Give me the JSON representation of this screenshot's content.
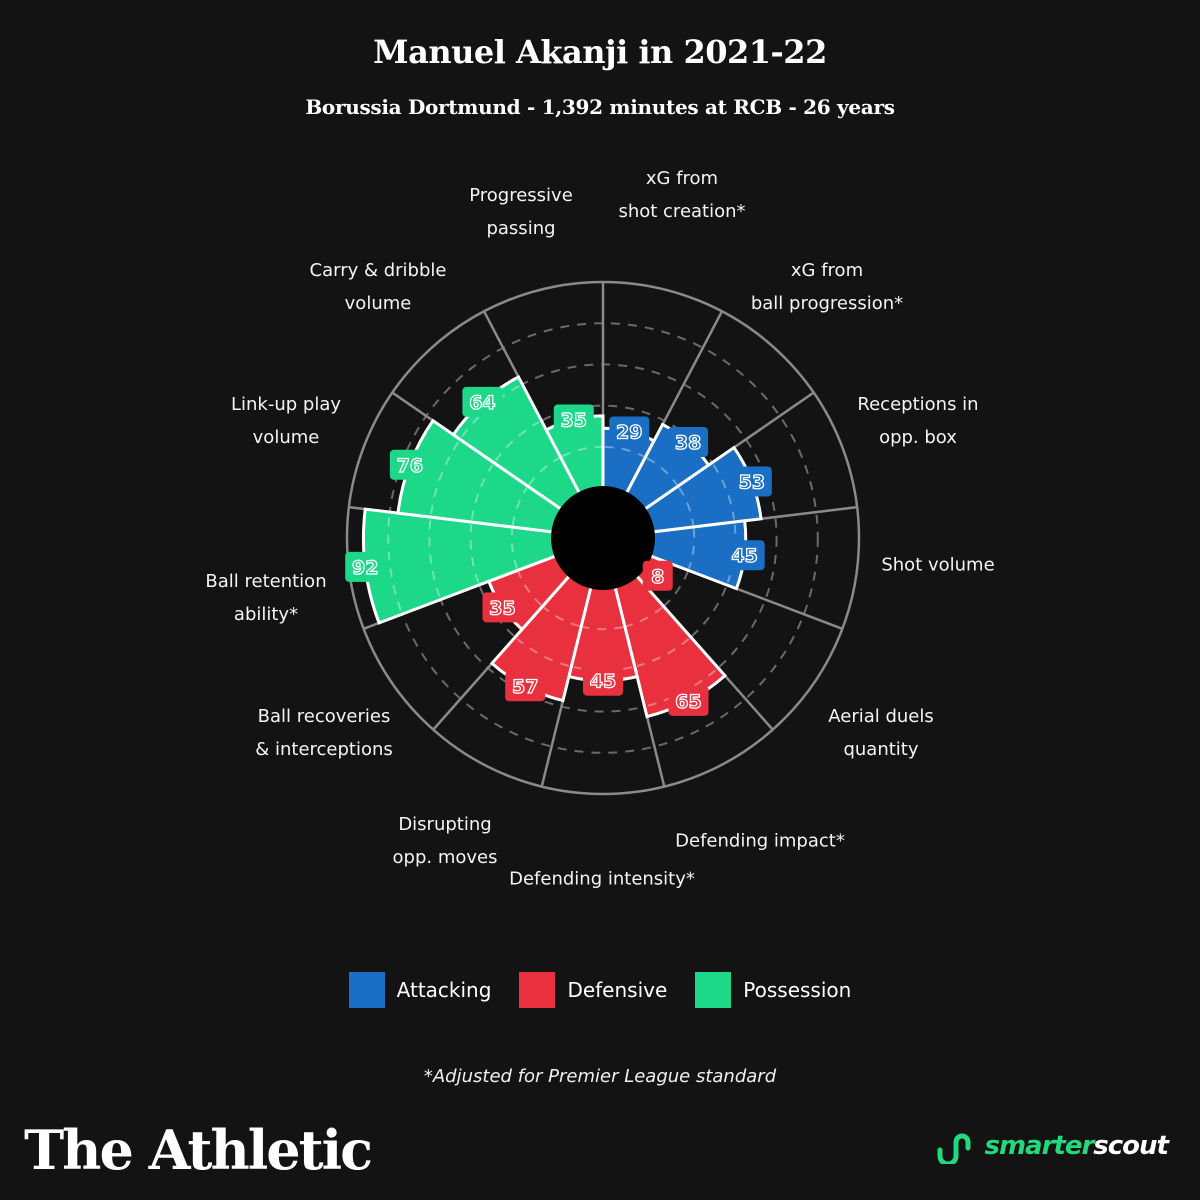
{
  "header": {
    "title": "Manuel Akanji in 2021-22",
    "subtitle": "Borussia Dortmund - 1,392 minutes at RCB - 26 years"
  },
  "colors": {
    "background": "#131313",
    "Attacking": "#1a6fc4",
    "Defensive": "#e8303e",
    "Possession": "#1ed88a",
    "grid": "#8a8a8a",
    "dashed": "#6a6a6a"
  },
  "chart_data": {
    "type": "polar-bar",
    "title": "Manuel Akanji in 2021-22",
    "subtitle": "Borussia Dortmund - 1,392 minutes at RCB - 26 years",
    "range": [
      0,
      100
    ],
    "grid_rings": [
      20,
      40,
      60,
      80,
      100
    ],
    "direction": "clockwise from top",
    "categories": [
      {
        "label": "xG from\nshot creation*",
        "value": 29,
        "group": "Attacking"
      },
      {
        "label": "xG from\nball progression*",
        "value": 38,
        "group": "Attacking"
      },
      {
        "label": "Receptions in\nopp. box",
        "value": 53,
        "group": "Attacking"
      },
      {
        "label": "Shot volume",
        "value": 45,
        "group": "Attacking"
      },
      {
        "label": "Aerial duels\nquantity",
        "value": 8,
        "group": "Defensive"
      },
      {
        "label": "Defending impact*",
        "value": 65,
        "group": "Defensive"
      },
      {
        "label": "Defending intensity*",
        "value": 45,
        "group": "Defensive"
      },
      {
        "label": "Disrupting\nopp. moves",
        "value": 57,
        "group": "Defensive"
      },
      {
        "label": "Ball recoveries\n& interceptions",
        "value": 35,
        "group": "Defensive"
      },
      {
        "label": "Ball retention\nability*",
        "value": 92,
        "group": "Possession"
      },
      {
        "label": "Link-up play\nvolume",
        "value": 76,
        "group": "Possession"
      },
      {
        "label": "Carry & dribble\nvolume",
        "value": 64,
        "group": "Possession"
      },
      {
        "label": "Progressive\npassing",
        "value": 35,
        "group": "Possession"
      }
    ],
    "legend": [
      "Attacking",
      "Defensive",
      "Possession"
    ],
    "legend_position": "bottom"
  },
  "legend": [
    {
      "label": "Attacking",
      "color": "#1a6fc4"
    },
    {
      "label": "Defensive",
      "color": "#e8303e"
    },
    {
      "label": "Possession",
      "color": "#1ed88a"
    }
  ],
  "footnote": "*Adjusted for Premier League standard",
  "branding": {
    "left": "The Athletic",
    "right_part1": "smarter",
    "right_part2": "scout"
  }
}
